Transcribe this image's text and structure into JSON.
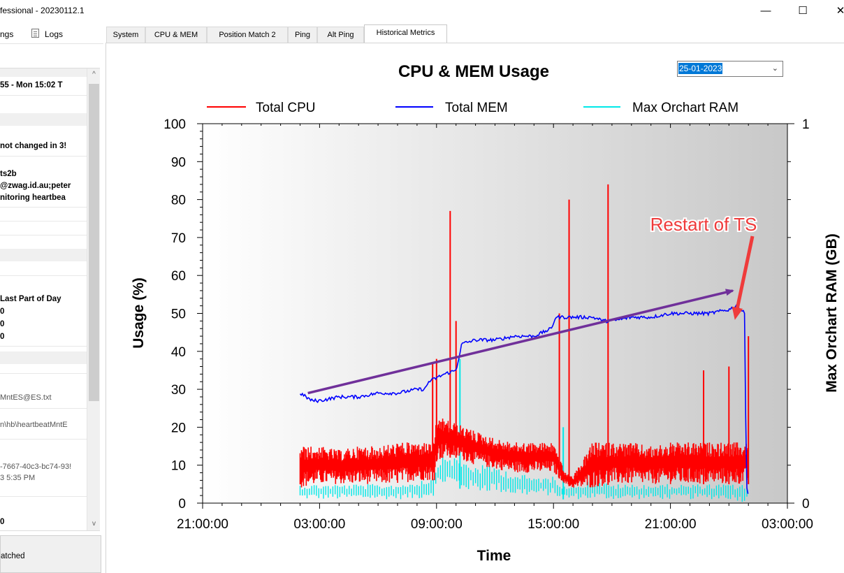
{
  "window": {
    "title": "fessional - 20230112.1",
    "controls": {
      "minimize": "—",
      "maximize": "☐",
      "close": "✕"
    }
  },
  "menu": {
    "settings_label": "ngs",
    "logs_label": "Logs"
  },
  "left_panel": {
    "rows": [
      {
        "text": "55 - Mon 15:02 T",
        "bold": true
      },
      {
        "text": "not changed in 3!",
        "bold": true
      },
      {
        "text": "ts2b",
        "bold": true
      },
      {
        "text": "@zwag.id.au;peter",
        "bold": true
      },
      {
        "text": "nitoring heartbea",
        "bold": true
      },
      {
        "text": "Last Part of Day",
        "bold": true
      },
      {
        "text": "0",
        "bold": true
      },
      {
        "text": "0",
        "bold": true
      },
      {
        "text": "0",
        "bold": true
      },
      {
        "text": "MntES@ES.txt",
        "bold": false
      },
      {
        "text": "n\\hb\\heartbeatMntE",
        "bold": false
      },
      {
        "text": "-7667-40c3-bc74-93!",
        "bold": false
      },
      {
        "text": "3 5:35 PM",
        "bold": false
      },
      {
        "text": "0",
        "bold": true
      }
    ],
    "status_text": "atched"
  },
  "tabs": [
    {
      "label": "System",
      "active": false
    },
    {
      "label": "CPU & MEM",
      "active": false
    },
    {
      "label": "Position Match 2",
      "active": false
    },
    {
      "label": "Ping",
      "active": false
    },
    {
      "label": "Alt Ping",
      "active": false
    },
    {
      "label": "Historical Metrics",
      "active": true
    }
  ],
  "date_picker": {
    "value": "25-01-2023"
  },
  "chart_data": {
    "type": "line",
    "title": "CPU & MEM Usage",
    "xlabel": "Time",
    "ylabel": "Usage (%)",
    "y2label": "Max Orchart RAM (GB)",
    "x_ticks": [
      "21:00:00",
      "03:00:00",
      "09:00:00",
      "15:00:00",
      "21:00:00",
      "03:00:00"
    ],
    "y_ticks": [
      "0",
      "10",
      "20",
      "30",
      "40",
      "50",
      "60",
      "70",
      "80",
      "90",
      "100"
    ],
    "y2_ticks": [
      "0",
      "1"
    ],
    "ylim": [
      0,
      100
    ],
    "y2lim": [
      0,
      1
    ],
    "legend_position": "top",
    "grid": false,
    "series": [
      {
        "name": "Total CPU",
        "color": "#ff0000",
        "x_hours": [
          2,
          3,
          4,
          5,
          6,
          7,
          8,
          8.9,
          9,
          9.5,
          10,
          11,
          12,
          13,
          14,
          15,
          15.6,
          16,
          17,
          18,
          19,
          20,
          21,
          22,
          23,
          24,
          25
        ],
        "low": [
          4,
          5,
          5,
          5,
          5,
          5,
          6,
          6,
          11,
          12,
          12,
          10,
          9,
          8,
          8,
          8,
          5,
          4,
          4,
          5,
          5,
          5,
          5,
          5,
          5,
          5,
          5
        ],
        "high": [
          15,
          15,
          14,
          15,
          15,
          16,
          16,
          16,
          23,
          22,
          21,
          19,
          17,
          16,
          16,
          16,
          8,
          7,
          16,
          16,
          16,
          15,
          16,
          16,
          16,
          16,
          16
        ],
        "spikes": [
          {
            "x_hour": 8.8,
            "value": 37
          },
          {
            "x_hour": 9.0,
            "value": 38
          },
          {
            "x_hour": 9.7,
            "value": 77
          },
          {
            "x_hour": 10.0,
            "value": 48
          },
          {
            "x_hour": 15.3,
            "value": 50
          },
          {
            "x_hour": 15.8,
            "value": 80
          },
          {
            "x_hour": 17.8,
            "value": 84
          },
          {
            "x_hour": 22.7,
            "value": 35
          },
          {
            "x_hour": 24.0,
            "value": 36
          },
          {
            "x_hour": 25.0,
            "value": 44
          }
        ]
      },
      {
        "name": "Total MEM",
        "color": "#0000ff",
        "x_hours": [
          2,
          2.6,
          3,
          4,
          5,
          6,
          7,
          8,
          8.4,
          8.6,
          9,
          9.4,
          10,
          10.3,
          11,
          12,
          13,
          14,
          14.9,
          15.1,
          16,
          17,
          17.6,
          18,
          19,
          20,
          21,
          22,
          23,
          24,
          24.4,
          24.8,
          24.9,
          25
        ],
        "values": [
          29,
          27,
          27,
          28,
          28,
          29,
          29,
          30,
          30,
          32,
          33,
          34,
          35,
          42,
          43,
          43,
          44,
          44,
          46,
          49,
          49,
          49,
          48,
          48,
          49,
          49,
          50,
          50,
          50,
          51,
          52,
          50,
          5,
          2
        ]
      },
      {
        "name": "Max Orchart RAM",
        "color": "#00e8e8",
        "x_hours": [
          2,
          3,
          4,
          5,
          6,
          7,
          8,
          8.9,
          9,
          9.5,
          10,
          11,
          12,
          13,
          14,
          15,
          15.5,
          16,
          17,
          18,
          19,
          20,
          21,
          22,
          23,
          24,
          25
        ],
        "low": [
          0.01,
          0.01,
          0.01,
          0.01,
          0.01,
          0.01,
          0.01,
          0.02,
          0.04,
          0.05,
          0.04,
          0.03,
          0.03,
          0.02,
          0.02,
          0.02,
          0.01,
          0.01,
          0.01,
          0.01,
          0.01,
          0.01,
          0.01,
          0.01,
          0.01,
          0.01,
          0.0
        ],
        "high": [
          0.05,
          0.05,
          0.05,
          0.05,
          0.05,
          0.05,
          0.06,
          0.07,
          0.12,
          0.13,
          0.12,
          0.1,
          0.1,
          0.08,
          0.07,
          0.07,
          0.05,
          0.05,
          0.06,
          0.05,
          0.05,
          0.05,
          0.05,
          0.05,
          0.05,
          0.05,
          0.05
        ],
        "spikes": [
          {
            "x_hour": 10.2,
            "value": 0.38
          },
          {
            "x_hour": 15.5,
            "value": 0.2
          }
        ]
      }
    ],
    "annotations": {
      "callout_text": "Restart of TS",
      "trend_arrow": {
        "from": {
          "x_hour": 2.4,
          "value": 29
        },
        "to": {
          "x_hour": 24.2,
          "value": 56
        },
        "color": "#70309a"
      },
      "pointer_arrow_color": "#ef3b3b"
    }
  }
}
